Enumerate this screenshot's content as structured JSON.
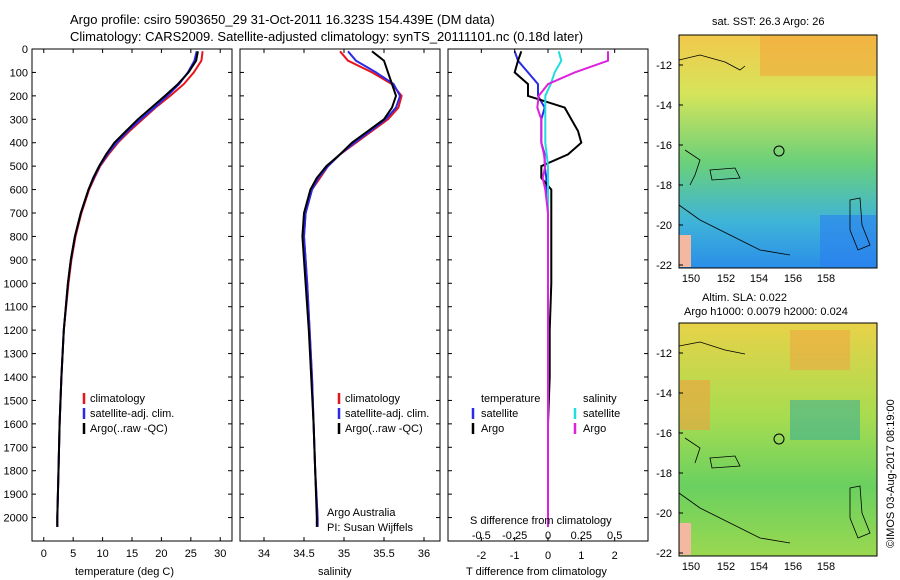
{
  "header": {
    "title_line1": "Argo profile: csiro 5903650_29 31-Oct-2011 16.323S 154.439E (DM data)",
    "title_line2": "Climatology: CARS2009. Satellite-adjusted climatology: synTS_20111101.nc (0.18d later)"
  },
  "colors": {
    "clim": "#e8141c",
    "sat": "#2a2ae8",
    "argo": "#000000",
    "sat_s": "#22dddd",
    "argo_s": "#dd22dd"
  },
  "chart_data": [
    {
      "type": "line",
      "panel": "temperature",
      "xlabel": "temperature (deg C)",
      "ylabel": "",
      "xlim": [
        -2,
        32
      ],
      "ylim": [
        2100,
        0
      ],
      "xticks": [
        0,
        5,
        10,
        15,
        20,
        25,
        30
      ],
      "yticks": [
        0,
        100,
        200,
        300,
        400,
        500,
        600,
        700,
        800,
        900,
        1000,
        1100,
        1200,
        1300,
        1400,
        1500,
        1600,
        1700,
        1800,
        1900,
        2000
      ],
      "depth": [
        10,
        50,
        100,
        150,
        200,
        250,
        300,
        350,
        400,
        450,
        500,
        550,
        600,
        700,
        800,
        900,
        1000,
        1200,
        1400,
        1600,
        1800,
        2000,
        2040
      ],
      "legend": [
        "climatology",
        "satellite-adj. clim.",
        "Argo(..raw -QC)"
      ],
      "series": [
        {
          "name": "climatology",
          "values": [
            27,
            26.8,
            25.5,
            23.8,
            21.5,
            19,
            16.8,
            14.6,
            12.6,
            11,
            9.6,
            8.6,
            7.7,
            6.4,
            5.4,
            4.7,
            4.2,
            3.4,
            3,
            2.7,
            2.5,
            2.3,
            2.3
          ]
        },
        {
          "name": "satellite-adj. clim.",
          "values": [
            26,
            25.6,
            24.5,
            23,
            21,
            18.8,
            16.5,
            14.3,
            12.4,
            10.8,
            9.5,
            8.5,
            7.6,
            6.3,
            5.3,
            4.6,
            4.1,
            3.4,
            3,
            2.7,
            2.5,
            2.3,
            2.3
          ]
        },
        {
          "name": "Argo(..raw -QC)",
          "values": [
            26.2,
            25.9,
            24.6,
            22.8,
            20.6,
            18.3,
            16,
            14,
            12,
            10.6,
            9.4,
            8.4,
            7.6,
            6.3,
            5.3,
            4.6,
            4.1,
            3.4,
            3,
            2.7,
            2.5,
            2.3,
            2.3
          ]
        }
      ]
    },
    {
      "type": "line",
      "panel": "salinity",
      "xlabel": "salinity",
      "ylabel": "",
      "xlim": [
        33.7,
        36.2
      ],
      "ylim": [
        2100,
        0
      ],
      "xticks": [
        34,
        34.5,
        35,
        35.5,
        36
      ],
      "depth": [
        10,
        50,
        100,
        150,
        200,
        250,
        300,
        350,
        400,
        450,
        500,
        550,
        600,
        700,
        800,
        900,
        1000,
        1200,
        1400,
        1600,
        1800,
        2000,
        2040
      ],
      "legend": [
        "climatology",
        "satellite-adj. clim.",
        "Argo(..raw -QC)"
      ],
      "annotations": [
        "Argo Australia",
        "PI: Susan Wijffels"
      ],
      "series": [
        {
          "name": "climatology",
          "values": [
            34.95,
            35.05,
            35.35,
            35.6,
            35.72,
            35.68,
            35.55,
            35.35,
            35.15,
            34.95,
            34.8,
            34.7,
            34.6,
            34.52,
            34.5,
            34.52,
            34.54,
            34.57,
            34.6,
            34.62,
            34.64,
            34.67,
            34.67
          ]
        },
        {
          "name": "satellite-adj. clim.",
          "values": [
            35.05,
            35.15,
            35.4,
            35.62,
            35.7,
            35.65,
            35.52,
            35.33,
            35.13,
            34.95,
            34.8,
            34.68,
            34.6,
            34.52,
            34.5,
            34.52,
            34.54,
            34.57,
            34.6,
            34.62,
            34.64,
            34.67,
            34.67
          ]
        },
        {
          "name": "Argo(..raw -QC)",
          "values": [
            35.35,
            35.5,
            35.55,
            35.6,
            35.65,
            35.6,
            35.5,
            35.3,
            35.1,
            34.95,
            34.78,
            34.66,
            34.58,
            34.5,
            34.48,
            34.5,
            34.52,
            34.56,
            34.59,
            34.62,
            34.64,
            34.66,
            34.66
          ]
        }
      ]
    },
    {
      "type": "line",
      "panel": "difference",
      "xlabel": "T difference from climatology",
      "xlabel2": "S difference from climatology",
      "xlim": [
        -3,
        3
      ],
      "ylim": [
        2100,
        0
      ],
      "xticks": [
        -2,
        -1,
        0,
        1,
        2
      ],
      "xticks_top": [
        -0.5,
        -0.25,
        0,
        0.25,
        0.5
      ],
      "depth": [
        10,
        50,
        100,
        150,
        200,
        250,
        300,
        350,
        400,
        450,
        500,
        550,
        600,
        700,
        800,
        900,
        1000,
        1200,
        1400,
        1600,
        1800,
        2000,
        2040
      ],
      "legend_titles": [
        "temperature",
        "salinity"
      ],
      "legend": [
        "satellite",
        "Argo",
        "satellite",
        "Argo"
      ],
      "series": [
        {
          "name": "T satellite",
          "values": [
            -1,
            -0.9,
            -0.6,
            -0.3,
            -0.3,
            -0.1,
            -0.2,
            -0.2,
            -0.2,
            -0.1,
            -0.1,
            -0.05,
            -0.05,
            0,
            0,
            0,
            0,
            0,
            0,
            0,
            0,
            0,
            0
          ]
        },
        {
          "name": "T Argo",
          "values": [
            -0.8,
            -0.9,
            -1,
            -0.6,
            -0.6,
            0.5,
            0.7,
            0.9,
            1,
            0.6,
            -0.2,
            -0.2,
            0.1,
            0.1,
            0.1,
            0.1,
            0.1,
            0.05,
            0.05,
            0,
            0,
            0,
            0
          ]
        },
        {
          "name": "S satellite",
          "values": [
            0.08,
            0.1,
            0.05,
            0.02,
            -0.02,
            -0.02,
            -0.02,
            -0.02,
            -0.02,
            -0.01,
            0,
            0,
            0,
            0,
            0,
            0,
            0,
            0,
            0,
            0,
            0,
            0,
            0
          ]
        },
        {
          "name": "S Argo",
          "values": [
            0.45,
            0.45,
            0.2,
            0,
            -0.07,
            -0.08,
            -0.05,
            -0.05,
            -0.05,
            -0.03,
            -0.02,
            -0.04,
            -0.02,
            0,
            0,
            0,
            0,
            0,
            0,
            0,
            0,
            0,
            0
          ]
        }
      ]
    }
  ],
  "map_sst": {
    "title": "sat. SST: 26.3  Argo: 26",
    "lat_ticks": [
      "-12",
      "-14",
      "-16",
      "-18",
      "-20",
      "-22"
    ],
    "lon_ticks": [
      "150",
      "152",
      "154",
      "156",
      "158"
    ]
  },
  "map_sla": {
    "title_line1": "Altim. SLA: 0.022",
    "title_line2": "Argo h1000: 0.0079 h2000: 0.024",
    "lat_ticks": [
      "-12",
      "-14",
      "-16",
      "-18",
      "-20",
      "-22"
    ],
    "lon_ticks": [
      "150",
      "152",
      "154",
      "156",
      "158"
    ]
  },
  "footer": {
    "credit": "©IMOS 03-Aug-2017 08:19:00"
  }
}
